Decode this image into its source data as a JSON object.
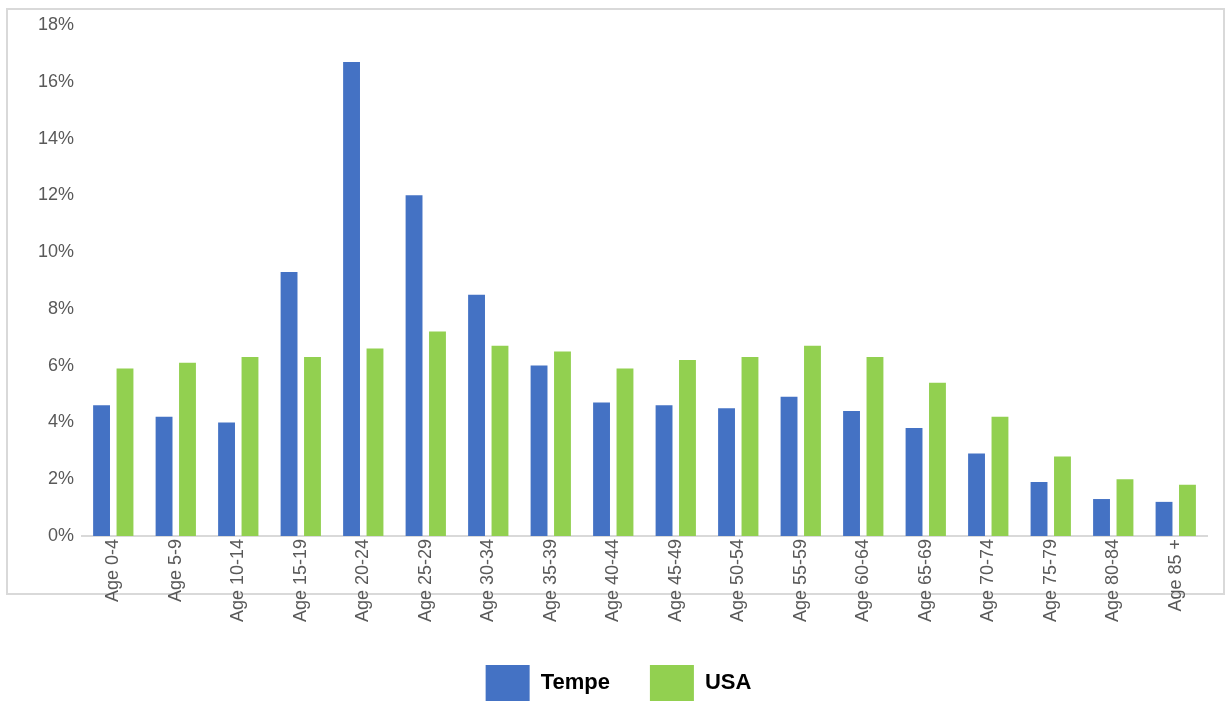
{
  "chart_data": {
    "type": "bar",
    "categories": [
      "Age 0-4",
      "Age 5-9",
      "Age 10-14",
      "Age 15-19",
      "Age 20-24",
      "Age 25-29",
      "Age 30-34",
      "Age 35-39",
      "Age 40-44",
      "Age 45-49",
      "Age 50-54",
      "Age 55-59",
      "Age 60-64",
      "Age 65-69",
      "Age 70-74",
      "Age 75-79",
      "Age 80-84",
      "Age 85 +"
    ],
    "series": [
      {
        "name": "Tempe",
        "color": "#4472c4",
        "values": [
          4.6,
          4.2,
          4.0,
          9.3,
          16.7,
          12.0,
          8.5,
          6.0,
          4.7,
          4.6,
          4.5,
          4.9,
          4.4,
          3.8,
          2.9,
          1.9,
          1.3,
          1.2
        ]
      },
      {
        "name": "USA",
        "color": "#92d050",
        "values": [
          5.9,
          6.1,
          6.3,
          6.3,
          6.6,
          7.2,
          6.7,
          6.5,
          5.9,
          6.2,
          6.3,
          6.7,
          6.3,
          5.4,
          4.2,
          2.8,
          2.0,
          1.8
        ]
      }
    ],
    "ylim": [
      0,
      18
    ],
    "yticks": [
      {
        "value": 0,
        "label": "0%"
      },
      {
        "value": 2,
        "label": "2%"
      },
      {
        "value": 4,
        "label": "4%"
      },
      {
        "value": 6,
        "label": "6%"
      },
      {
        "value": 8,
        "label": "8%"
      },
      {
        "value": 10,
        "label": "10%"
      },
      {
        "value": 12,
        "label": "12%"
      },
      {
        "value": 14,
        "label": "14%"
      },
      {
        "value": 16,
        "label": "16%"
      },
      {
        "value": 18,
        "label": "18%"
      }
    ],
    "grid": false,
    "legend": "bottom"
  }
}
